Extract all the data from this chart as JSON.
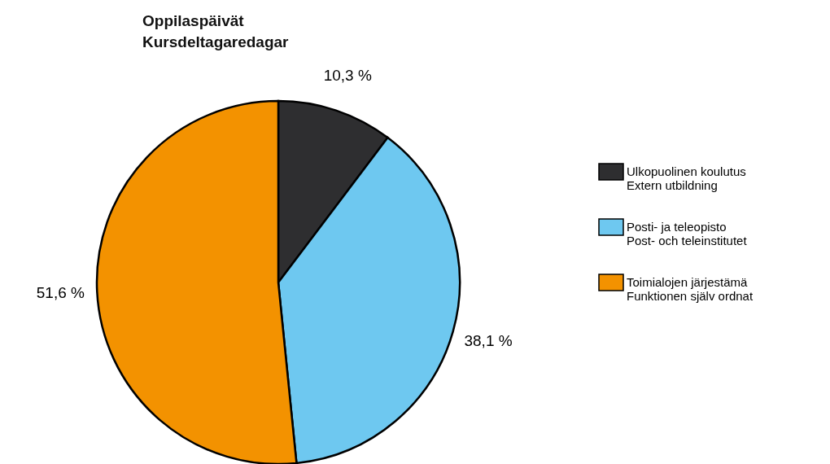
{
  "chart_data": {
    "type": "pie",
    "title": "Oppilaspäivät\nKursdeltagaredagar",
    "categories": [
      "Ulkopuolinen koulutus\nExtern utbildning",
      "Posti- ja teleopisto\nPost- och teleinstitutet",
      "Toimialojen järjestämä\nFunktionen själv ordnat"
    ],
    "values": [
      10.3,
      38.1,
      51.6
    ],
    "value_labels": [
      "10,3 %",
      "38,1 %",
      "51,6 %"
    ],
    "colors": [
      "#2e2e30",
      "#6ec8f0",
      "#f39200"
    ],
    "legend": "right"
  }
}
